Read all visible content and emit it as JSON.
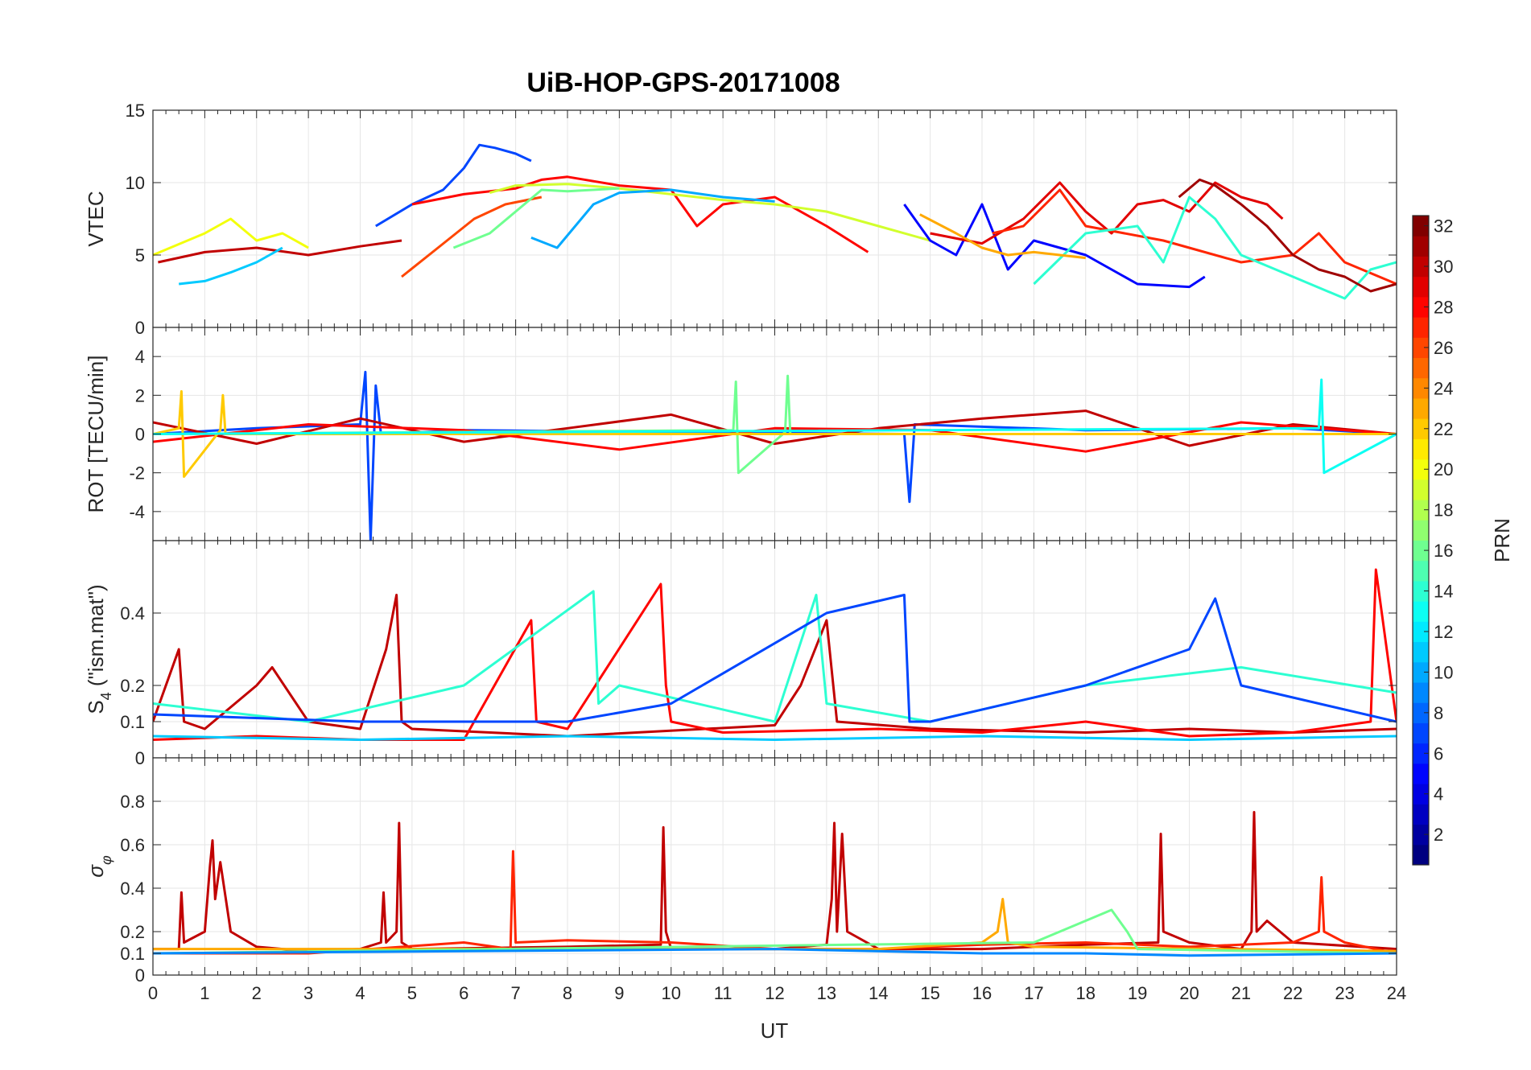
{
  "chart_data": {
    "type": "line",
    "title": "UiB-HOP-GPS-20171008",
    "xlabel": "UT",
    "xlim": [
      0,
      24
    ],
    "x_ticks": [
      "0",
      "1",
      "2",
      "3",
      "4",
      "5",
      "6",
      "7",
      "8",
      "9",
      "10",
      "11",
      "12",
      "13",
      "14",
      "15",
      "16",
      "17",
      "18",
      "19",
      "20",
      "21",
      "22",
      "23",
      "24"
    ],
    "grid": true,
    "colorbar": {
      "label": "PRN",
      "range": [
        1,
        32
      ],
      "colormap": "jet",
      "ticks": [
        "2",
        "4",
        "6",
        "8",
        "10",
        "12",
        "14",
        "16",
        "18",
        "20",
        "22",
        "24",
        "26",
        "28",
        "30",
        "32"
      ]
    },
    "panels": [
      {
        "name": "vtec",
        "ylabel": "VTEC",
        "ylim": [
          0,
          15
        ],
        "y_ticks": [
          0,
          5,
          10,
          15
        ],
        "y_tick_labels": [
          "0",
          "5",
          "10",
          "15"
        ],
        "series": [
          {
            "prn": 7,
            "x": [
              4.3,
              5.0,
              5.6,
              6.0,
              6.3,
              6.6,
              7.0,
              7.3
            ],
            "y": [
              7.0,
              8.5,
              9.5,
              11.0,
              12.6,
              12.4,
              12.0,
              11.5
            ]
          },
          {
            "prn": 30,
            "x": [
              0.1,
              1.0,
              2.0,
              3.0,
              4.0,
              4.8
            ],
            "y": [
              4.5,
              5.2,
              5.5,
              5.0,
              5.6,
              6.0
            ]
          },
          {
            "prn": 26,
            "x": [
              4.8,
              5.5,
              6.2,
              6.8,
              7.5
            ],
            "y": [
              3.5,
              5.5,
              7.5,
              8.5,
              9.0
            ]
          },
          {
            "prn": 28,
            "x": [
              5.0,
              6.0,
              7.0,
              7.5,
              8.0,
              9.0,
              10.0,
              10.5,
              11.0,
              12.0,
              13.0,
              13.8
            ],
            "y": [
              8.5,
              9.2,
              9.6,
              10.2,
              10.4,
              9.8,
              9.5,
              7.0,
              8.5,
              9.0,
              7.0,
              5.2
            ]
          },
          {
            "prn": 19,
            "x": [
              6.5,
              7.0,
              8.0,
              9.0,
              10.0,
              11.0,
              12.0,
              13.0,
              14.0,
              15.0
            ],
            "y": [
              9.3,
              9.8,
              9.9,
              9.6,
              9.2,
              8.8,
              8.5,
              8.0,
              7.0,
              6.0
            ]
          },
          {
            "prn": 16,
            "x": [
              5.8,
              6.5,
              7.0,
              7.5,
              8.0,
              9.0
            ],
            "y": [
              5.5,
              6.5,
              8.0,
              9.5,
              9.4,
              9.6
            ]
          },
          {
            "prn": 10,
            "x": [
              7.3,
              7.8,
              8.5,
              9.0,
              10.0,
              11.0,
              12.0
            ],
            "y": [
              6.2,
              5.5,
              8.5,
              9.3,
              9.5,
              9.0,
              8.7
            ]
          },
          {
            "prn": 5,
            "x": [
              14.5,
              15.0,
              15.5,
              16.0,
              16.5,
              17.0,
              18.0,
              19.0,
              20.0,
              20.3
            ],
            "y": [
              8.5,
              6.0,
              5.0,
              8.5,
              4.0,
              6.0,
              5.0,
              3.0,
              2.8,
              3.5
            ]
          },
          {
            "prn": 29,
            "x": [
              15.0,
              16.0,
              16.8,
              17.5,
              18.0,
              18.5,
              19.0,
              19.5,
              20.0,
              20.5,
              21.0,
              21.5,
              21.8
            ],
            "y": [
              6.5,
              5.8,
              7.5,
              10.0,
              8.0,
              6.5,
              8.5,
              8.8,
              8.0,
              10.0,
              9.0,
              8.5,
              7.5
            ]
          },
          {
            "prn": 27,
            "x": [
              16.2,
              16.8,
              17.5,
              18.0,
              19.5,
              20.0,
              21.0,
              22.0,
              22.5,
              23.0,
              24.0
            ],
            "y": [
              6.5,
              7.0,
              9.5,
              7.0,
              6.0,
              5.5,
              4.5,
              5.0,
              6.5,
              4.5,
              3.0
            ]
          },
          {
            "prn": 14,
            "x": [
              17.0,
              18.0,
              19.0,
              19.5,
              20.0,
              20.5,
              21.0,
              22.0,
              23.0,
              23.5,
              24.0
            ],
            "y": [
              3.0,
              6.5,
              7.0,
              4.5,
              9.0,
              7.5,
              5.0,
              3.5,
              2.0,
              4.0,
              4.5
            ]
          },
          {
            "prn": 20,
            "x": [
              0.0,
              1.0,
              1.5,
              2.0,
              2.5,
              3.0
            ],
            "y": [
              5.0,
              6.5,
              7.5,
              6.0,
              6.5,
              5.5
            ]
          },
          {
            "prn": 11,
            "x": [
              0.5,
              1.0,
              1.5,
              2.0,
              2.5
            ],
            "y": [
              3.0,
              3.2,
              3.8,
              4.5,
              5.5
            ]
          },
          {
            "prn": 23,
            "x": [
              14.8,
              15.5,
              16.0,
              16.5,
              17.0,
              18.0
            ],
            "y": [
              7.8,
              6.5,
              5.5,
              5.0,
              5.2,
              4.8
            ]
          },
          {
            "prn": 31,
            "x": [
              19.8,
              20.2,
              20.5,
              21.0,
              21.5,
              22.0,
              22.5,
              23.0,
              23.5,
              24.0
            ],
            "y": [
              9.0,
              10.2,
              9.8,
              8.5,
              7.0,
              5.0,
              4.0,
              3.5,
              2.5,
              3.0
            ]
          }
        ]
      },
      {
        "name": "rot",
        "ylabel": "ROT [TECU/min]",
        "ylim": [
          -5.5,
          5.5
        ],
        "y_ticks": [
          -4,
          -2,
          0,
          2,
          4
        ],
        "y_tick_labels": [
          "-4",
          "-2",
          "0",
          "2",
          "4"
        ],
        "series": [
          {
            "prn": 7,
            "x": [
              0,
              2,
              4,
              4.1,
              4.2,
              4.3,
              4.4,
              6,
              10,
              14.5,
              14.6,
              14.7,
              18,
              22,
              24
            ],
            "y": [
              0,
              0.3,
              0.5,
              3.2,
              -5.5,
              2.5,
              0,
              0.2,
              0.1,
              0,
              -3.5,
              0.5,
              0.2,
              0.3,
              0
            ]
          },
          {
            "prn": 30,
            "x": [
              0,
              2,
              4,
              6,
              8,
              10,
              12,
              14,
              16,
              18,
              20,
              22,
              24
            ],
            "y": [
              0.6,
              -0.5,
              0.8,
              -0.4,
              0.3,
              1.0,
              -0.5,
              0.3,
              0.8,
              1.2,
              -0.6,
              0.5,
              0
            ]
          },
          {
            "prn": 28,
            "x": [
              0,
              3,
              6,
              9,
              12,
              15,
              18,
              21,
              24
            ],
            "y": [
              -0.4,
              0.5,
              0.2,
              -0.8,
              0.3,
              0.2,
              -0.9,
              0.6,
              0
            ]
          },
          {
            "prn": 16,
            "x": [
              0,
              11.2,
              11.25,
              11.3,
              12.2,
              12.25,
              12.3,
              24
            ],
            "y": [
              0,
              0.2,
              2.7,
              -2.0,
              0.1,
              3.0,
              0,
              0
            ]
          },
          {
            "prn": 22,
            "x": [
              0,
              0.5,
              0.55,
              0.6,
              1.3,
              1.35,
              1.4,
              24
            ],
            "y": [
              0,
              0.3,
              2.2,
              -2.2,
              0.2,
              2.0,
              0,
              0
            ]
          },
          {
            "prn": 13,
            "x": [
              0,
              22.5,
              22.55,
              22.6,
              24
            ],
            "y": [
              0,
              0.3,
              2.8,
              -2.0,
              0
            ]
          }
        ]
      },
      {
        "name": "s4",
        "ylabel": "S4 (\"ism.mat\")",
        "ylabel_main": "S",
        "ylabel_sub": "4",
        "ylabel_rest": "(\"ism.mat\")",
        "ylim": [
          0,
          0.6
        ],
        "y_ticks": [
          0,
          0.1,
          0.2,
          0.4
        ],
        "y_tick_labels": [
          "0",
          "0.1",
          "0.2",
          "0.4"
        ],
        "series": [
          {
            "prn": 30,
            "x": [
              0,
              0.5,
              0.6,
              1,
              2,
              2.3,
              3,
              4,
              4.5,
              4.7,
              4.8,
              5,
              8,
              12,
              12.5,
              13,
              13.2,
              15,
              18,
              20,
              22,
              24
            ],
            "y": [
              0.1,
              0.3,
              0.1,
              0.08,
              0.2,
              0.25,
              0.1,
              0.08,
              0.3,
              0.45,
              0.1,
              0.08,
              0.06,
              0.09,
              0.2,
              0.38,
              0.1,
              0.08,
              0.07,
              0.08,
              0.07,
              0.08
            ]
          },
          {
            "prn": 28,
            "x": [
              0,
              2,
              4,
              6,
              7.3,
              7.4,
              8,
              9.8,
              9.9,
              10,
              11,
              14,
              16,
              18,
              20,
              22,
              23.5,
              23.6,
              24
            ],
            "y": [
              0.05,
              0.06,
              0.05,
              0.05,
              0.38,
              0.1,
              0.08,
              0.48,
              0.2,
              0.1,
              0.07,
              0.08,
              0.07,
              0.1,
              0.06,
              0.07,
              0.1,
              0.52,
              0.1
            ]
          },
          {
            "prn": 14,
            "x": [
              0,
              3,
              6,
              8.5,
              8.6,
              9,
              12,
              12.8,
              13,
              15,
              18,
              21,
              24
            ],
            "y": [
              0.15,
              0.1,
              0.2,
              0.46,
              0.15,
              0.2,
              0.1,
              0.45,
              0.15,
              0.1,
              0.2,
              0.25,
              0.18
            ]
          },
          {
            "prn": 7,
            "x": [
              0,
              4,
              8,
              10,
              13,
              14.5,
              14.6,
              15,
              18,
              20,
              20.5,
              21,
              24
            ],
            "y": [
              0.12,
              0.1,
              0.1,
              0.15,
              0.4,
              0.45,
              0.1,
              0.1,
              0.2,
              0.3,
              0.44,
              0.2,
              0.1
            ]
          },
          {
            "prn": 11,
            "x": [
              0,
              4,
              8,
              12,
              16,
              20,
              24
            ],
            "y": [
              0.06,
              0.05,
              0.06,
              0.05,
              0.06,
              0.05,
              0.06
            ]
          }
        ]
      },
      {
        "name": "sigma_phi",
        "ylabel": "σφ",
        "ylabel_main": "σ",
        "ylabel_sub": "φ",
        "ylim": [
          0,
          1
        ],
        "y_ticks": [
          0,
          0.1,
          0.2,
          0.4,
          0.6,
          0.8
        ],
        "y_tick_labels": [
          "0",
          "0.1",
          "0.2",
          "0.4",
          "0.6",
          "0.8"
        ],
        "series": [
          {
            "prn": 30,
            "x": [
              0,
              0.5,
              0.55,
              0.6,
              1,
              1.1,
              1.15,
              1.2,
              1.3,
              1.5,
              2,
              3,
              4,
              4.4,
              4.45,
              4.5,
              4.7,
              4.75,
              4.8,
              5,
              8,
              9.8,
              9.85,
              9.9,
              10,
              12,
              13,
              13.1,
              13.15,
              13.2,
              13.3,
              13.4,
              14,
              16,
              18,
              19.4,
              19.45,
              19.5,
              20,
              21,
              21.2,
              21.25,
              21.3,
              21.5,
              22,
              24
            ],
            "y": [
              0.12,
              0.12,
              0.38,
              0.15,
              0.2,
              0.5,
              0.62,
              0.35,
              0.52,
              0.2,
              0.13,
              0.11,
              0.12,
              0.15,
              0.38,
              0.15,
              0.2,
              0.7,
              0.15,
              0.12,
              0.13,
              0.14,
              0.68,
              0.2,
              0.12,
              0.12,
              0.14,
              0.35,
              0.7,
              0.2,
              0.65,
              0.2,
              0.12,
              0.12,
              0.14,
              0.15,
              0.65,
              0.2,
              0.15,
              0.12,
              0.2,
              0.75,
              0.2,
              0.25,
              0.15,
              0.12
            ]
          },
          {
            "prn": 27,
            "x": [
              0,
              3,
              6,
              6.9,
              6.95,
              7,
              8,
              10,
              12,
              14,
              16,
              18,
              20,
              22,
              22.5,
              22.55,
              22.6,
              23,
              24
            ],
            "y": [
              0.1,
              0.1,
              0.15,
              0.12,
              0.57,
              0.15,
              0.16,
              0.15,
              0.12,
              0.12,
              0.14,
              0.15,
              0.13,
              0.15,
              0.2,
              0.45,
              0.2,
              0.15,
              0.1
            ]
          },
          {
            "prn": 23,
            "x": [
              0,
              14,
              16,
              16.3,
              16.4,
              16.5,
              17,
              24
            ],
            "y": [
              0.12,
              0.12,
              0.15,
              0.2,
              0.35,
              0.15,
              0.13,
              0.11
            ]
          },
          {
            "prn": 16,
            "x": [
              0,
              17,
              18,
              18.5,
              18.8,
              19,
              24
            ],
            "y": [
              0.1,
              0.15,
              0.25,
              0.3,
              0.2,
              0.12,
              0.1
            ]
          },
          {
            "prn": 9,
            "x": [
              0,
              6,
              12,
              16,
              18,
              20,
              24
            ],
            "y": [
              0.1,
              0.11,
              0.12,
              0.1,
              0.1,
              0.09,
              0.1
            ]
          }
        ]
      }
    ]
  }
}
